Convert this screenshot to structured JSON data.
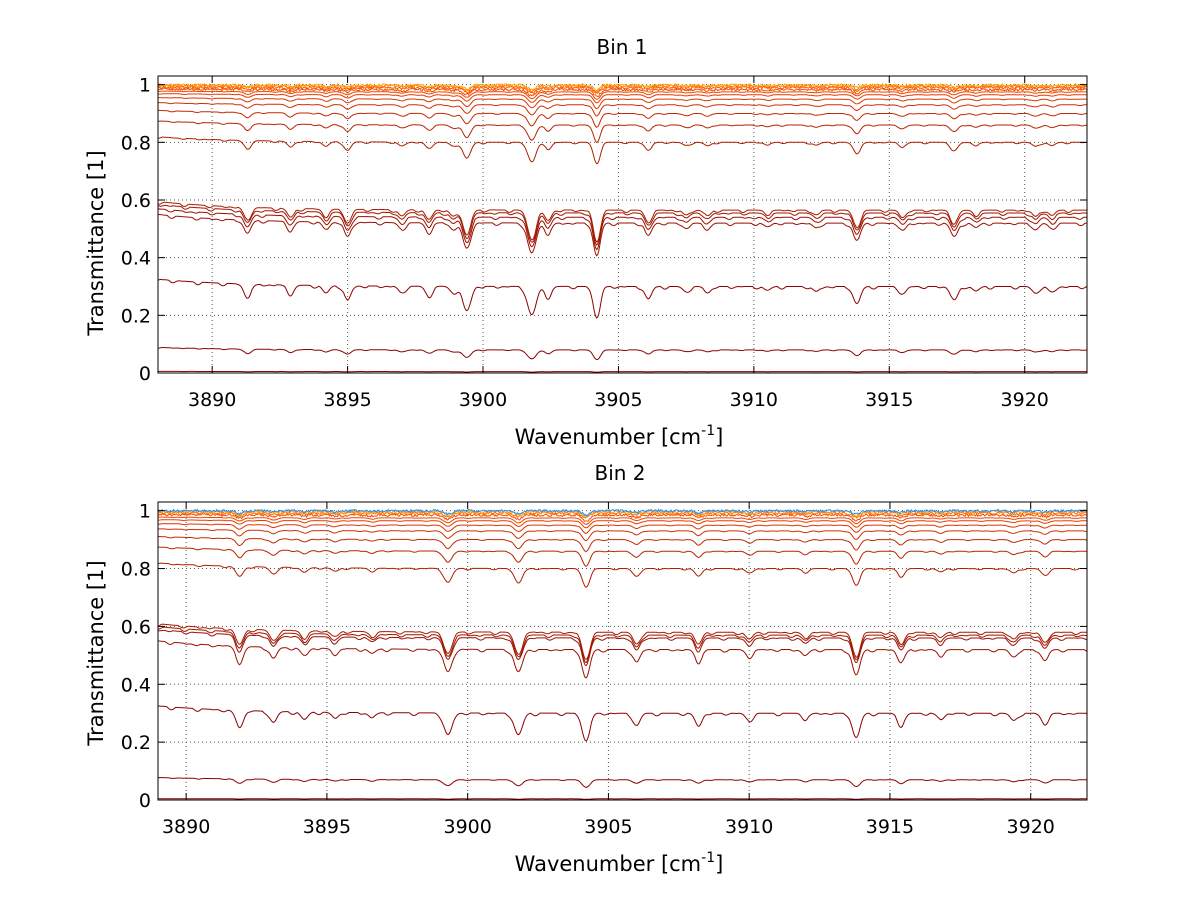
{
  "chart_data": [
    {
      "type": "line",
      "title": "Bin 1",
      "xlabel_main": "Wavenumber [cm",
      "xlabel_sup": "-1",
      "xlabel_close": "]",
      "ylabel": "Transmittance [1]",
      "xlim": [
        3888.0,
        3922.3
      ],
      "ylim": [
        0,
        1.03
      ],
      "xticks": [
        3890,
        3895,
        3900,
        3905,
        3910,
        3915,
        3920
      ],
      "yticks": [
        0,
        0.2,
        0.4,
        0.6,
        0.8,
        1
      ],
      "xtick_labels": [
        "3890",
        "3895",
        "3900",
        "3905",
        "3910",
        "3915",
        "3920"
      ],
      "ytick_labels": [
        "0",
        "0.2",
        "0.4",
        "0.6",
        "0.8",
        "1"
      ],
      "grid": true,
      "absorption_lines": [
        {
          "x": 3891.3,
          "depth": 0.35,
          "width": 0.13
        },
        {
          "x": 3892.9,
          "depth": 0.25,
          "width": 0.12
        },
        {
          "x": 3894.2,
          "depth": 0.2,
          "width": 0.12
        },
        {
          "x": 3895.0,
          "depth": 0.4,
          "width": 0.12
        },
        {
          "x": 3897.0,
          "depth": 0.18,
          "width": 0.12
        },
        {
          "x": 3898.0,
          "depth": 0.28,
          "width": 0.12
        },
        {
          "x": 3898.9,
          "depth": 0.18,
          "width": 0.12
        },
        {
          "x": 3899.4,
          "depth": 0.75,
          "width": 0.14
        },
        {
          "x": 3901.8,
          "depth": 0.9,
          "width": 0.15
        },
        {
          "x": 3902.4,
          "depth": 0.3,
          "width": 0.12
        },
        {
          "x": 3904.2,
          "depth": 1.0,
          "width": 0.12
        },
        {
          "x": 3906.1,
          "depth": 0.35,
          "width": 0.12
        },
        {
          "x": 3907.5,
          "depth": 0.14,
          "width": 0.12
        },
        {
          "x": 3908.3,
          "depth": 0.16,
          "width": 0.12
        },
        {
          "x": 3910.5,
          "depth": 0.1,
          "width": 0.12
        },
        {
          "x": 3912.3,
          "depth": 0.13,
          "width": 0.12
        },
        {
          "x": 3913.8,
          "depth": 0.5,
          "width": 0.13
        },
        {
          "x": 3915.5,
          "depth": 0.2,
          "width": 0.12
        },
        {
          "x": 3917.4,
          "depth": 0.38,
          "width": 0.13
        },
        {
          "x": 3918.2,
          "depth": 0.12,
          "width": 0.12
        },
        {
          "x": 3920.4,
          "depth": 0.18,
          "width": 0.12
        },
        {
          "x": 3921.0,
          "depth": 0.15,
          "width": 0.12
        }
      ],
      "series": [
        {
          "base": 0.005,
          "color": "#8B0000"
        },
        {
          "base": 0.08,
          "color": "#8B0000"
        },
        {
          "base": 0.3,
          "color": "#8B0000"
        },
        {
          "base": 0.52,
          "color": "#9B0F00"
        },
        {
          "base": 0.54,
          "color": "#9B0F00"
        },
        {
          "base": 0.555,
          "color": "#A01500"
        },
        {
          "base": 0.565,
          "color": "#A51A00"
        },
        {
          "base": 0.8,
          "color": "#B01E00"
        },
        {
          "base": 0.86,
          "color": "#B82200"
        },
        {
          "base": 0.9,
          "color": "#C42800"
        },
        {
          "base": 0.93,
          "color": "#D02E00"
        },
        {
          "base": 0.95,
          "color": "#DC3400"
        },
        {
          "base": 0.965,
          "color": "#E63C00"
        },
        {
          "base": 0.975,
          "color": "#EE4400"
        },
        {
          "base": 0.983,
          "color": "#F44C00"
        },
        {
          "base": 0.99,
          "color": "#FA5A00"
        },
        {
          "base": 0.995,
          "color": "#FF7000"
        },
        {
          "base": 0.999,
          "color": "#FFA000"
        }
      ]
    },
    {
      "type": "line",
      "title": "Bin 2",
      "xlabel_main": "Wavenumber [cm",
      "xlabel_sup": "-1",
      "xlabel_close": "]",
      "ylabel": "Transmittance [1]",
      "xlim": [
        3889.0,
        3922.0
      ],
      "ylim": [
        0,
        1.03
      ],
      "xticks": [
        3890,
        3895,
        3900,
        3905,
        3910,
        3915,
        3920
      ],
      "yticks": [
        0,
        0.2,
        0.4,
        0.6,
        0.8,
        1
      ],
      "xtick_labels": [
        "3890",
        "3895",
        "3900",
        "3905",
        "3910",
        "3915",
        "3920"
      ],
      "ytick_labels": [
        "0",
        "0.2",
        "0.4",
        "0.6",
        "0.8",
        "1"
      ],
      "grid": true,
      "absorption_lines": [
        {
          "x": 3891.9,
          "depth": 0.45,
          "width": 0.13
        },
        {
          "x": 3893.1,
          "depth": 0.3,
          "width": 0.12
        },
        {
          "x": 3894.2,
          "depth": 0.2,
          "width": 0.12
        },
        {
          "x": 3895.3,
          "depth": 0.15,
          "width": 0.12
        },
        {
          "x": 3896.6,
          "depth": 0.12,
          "width": 0.12
        },
        {
          "x": 3899.3,
          "depth": 0.65,
          "width": 0.14
        },
        {
          "x": 3901.8,
          "depth": 0.65,
          "width": 0.14
        },
        {
          "x": 3904.2,
          "depth": 0.85,
          "width": 0.13
        },
        {
          "x": 3906.0,
          "depth": 0.35,
          "width": 0.12
        },
        {
          "x": 3908.2,
          "depth": 0.35,
          "width": 0.12
        },
        {
          "x": 3910.0,
          "depth": 0.2,
          "width": 0.12
        },
        {
          "x": 3912.0,
          "depth": 0.15,
          "width": 0.12
        },
        {
          "x": 3913.8,
          "depth": 0.75,
          "width": 0.13
        },
        {
          "x": 3915.4,
          "depth": 0.35,
          "width": 0.12
        },
        {
          "x": 3916.8,
          "depth": 0.15,
          "width": 0.12
        },
        {
          "x": 3919.4,
          "depth": 0.2,
          "width": 0.12
        },
        {
          "x": 3920.5,
          "depth": 0.3,
          "width": 0.12
        }
      ],
      "series": [
        {
          "base": 0.004,
          "color": "#8B0000"
        },
        {
          "base": 0.07,
          "color": "#8B0000"
        },
        {
          "base": 0.3,
          "color": "#8B0000"
        },
        {
          "base": 0.52,
          "color": "#9B0F00"
        },
        {
          "base": 0.56,
          "color": "#9B0F00"
        },
        {
          "base": 0.57,
          "color": "#A01500"
        },
        {
          "base": 0.58,
          "color": "#A51A00"
        },
        {
          "base": 0.8,
          "color": "#B01E00"
        },
        {
          "base": 0.86,
          "color": "#B82200"
        },
        {
          "base": 0.9,
          "color": "#C42800"
        },
        {
          "base": 0.93,
          "color": "#D02E00"
        },
        {
          "base": 0.95,
          "color": "#DC3400"
        },
        {
          "base": 0.965,
          "color": "#E63C00"
        },
        {
          "base": 0.975,
          "color": "#EE4400"
        },
        {
          "base": 0.985,
          "color": "#F44C00"
        },
        {
          "base": 0.992,
          "color": "#FF7000"
        },
        {
          "base": 0.997,
          "color": "#FFA000"
        },
        {
          "base": 1.0,
          "color": "#1E90FF"
        }
      ]
    }
  ]
}
